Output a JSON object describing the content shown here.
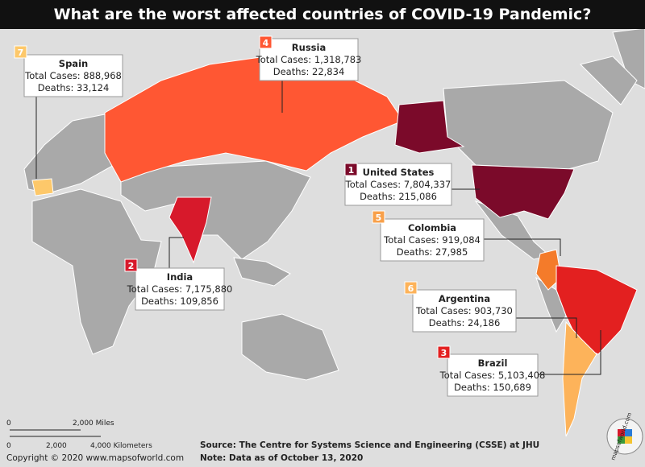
{
  "title": "What are the worst affected countries of COVID-19 Pandemic?",
  "countries": [
    {
      "rank": 1,
      "name": "United States",
      "total_cases": "Total Cases: 7,804,337",
      "deaths": "Deaths: 215,086"
    },
    {
      "rank": 2,
      "name": "India",
      "total_cases": "Total Cases: 7,175,880",
      "deaths": "Deaths: 109,856"
    },
    {
      "rank": 3,
      "name": "Brazil",
      "total_cases": "Total Cases: 5,103,408",
      "deaths": "Deaths: 150,689"
    },
    {
      "rank": 4,
      "name": "Russia",
      "total_cases": "Total Cases: 1,318,783",
      "deaths": "Deaths: 22,834"
    },
    {
      "rank": 5,
      "name": "Colombia",
      "total_cases": "Total Cases: 919,084",
      "deaths": "Deaths: 27,985"
    },
    {
      "rank": 6,
      "name": "Argentina",
      "total_cases": "Total Cases: 903,730",
      "deaths": "Deaths: 24,186"
    },
    {
      "rank": 7,
      "name": "Spain",
      "total_cases": "Total Cases: 888,968",
      "deaths": "Deaths: 33,124"
    }
  ],
  "scale": {
    "miles_zero": "0",
    "miles": "2,000 Miles",
    "km_zero": "0",
    "km_mid": "2,000",
    "km": "4,000 Kilometers"
  },
  "footer": {
    "copyright": "Copyright © 2020 www.mapsofworld.com",
    "source": "Source: The Centre for Systems Science and Engineering (CSSE) at JHU",
    "note": "Note: Data as of October 13, 2020"
  },
  "logo": "mapsofworld.com"
}
